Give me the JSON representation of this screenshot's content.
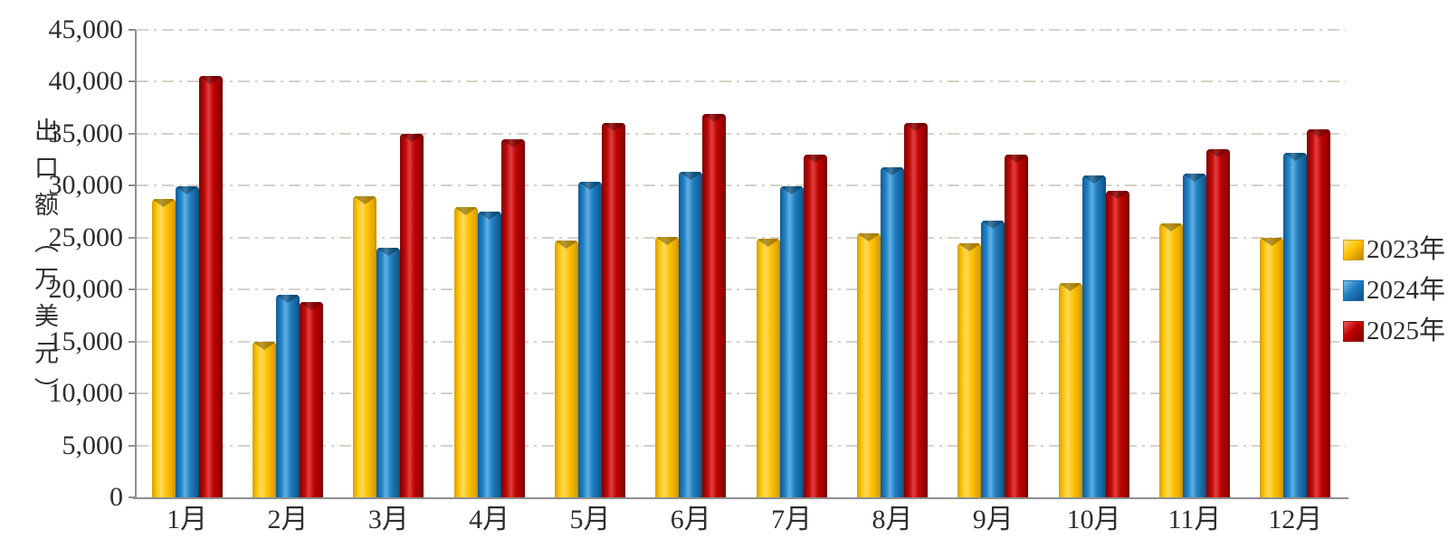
{
  "chart_data": {
    "type": "bar",
    "title": "",
    "categories": [
      "1月",
      "2月",
      "3月",
      "4月",
      "5月",
      "6月",
      "7月",
      "8月",
      "9月",
      "10月",
      "11月",
      "12月"
    ],
    "series": [
      {
        "name": "2023年",
        "color": "#FFC000",
        "values": [
          28700,
          15000,
          29000,
          27900,
          24700,
          25100,
          24900,
          25400,
          24500,
          20600,
          26400,
          25000
        ]
      },
      {
        "name": "2024年",
        "color": "#1F7EC2",
        "values": [
          29900,
          19500,
          24000,
          27500,
          30400,
          31300,
          29900,
          31800,
          26600,
          31000,
          31200,
          33200
        ]
      },
      {
        "name": "2025年",
        "color": "#C00000",
        "values": [
          40600,
          18800,
          35000,
          34500,
          36000,
          36900,
          33000,
          36000,
          33000,
          29500,
          33500,
          35400
        ]
      }
    ],
    "xlabel": "",
    "ylabel": "出口额（万美元）",
    "ylim": [
      0,
      45000
    ],
    "y_tick_step": 5000,
    "y_tick_labels": [
      "0",
      "5,000",
      "10,000",
      "15,000",
      "20,000",
      "25,000",
      "30,000",
      "35,000",
      "40,000",
      "45,000"
    ],
    "grid": "horizontal dash-dot",
    "legend_position": "right"
  },
  "colors": {
    "series_2023": "#FFC000",
    "series_2024": "#1F7EC2",
    "series_2025": "#C00000",
    "gridline": "#D6D2C9",
    "axis": "#8F8F8F",
    "text": "#2E2E2E",
    "background": "#FFFFFF"
  }
}
